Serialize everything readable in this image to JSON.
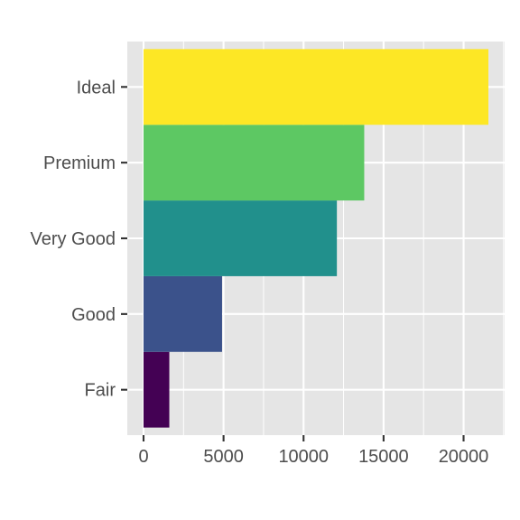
{
  "chart_data": {
    "type": "bar",
    "orientation": "horizontal",
    "categories": [
      "Fair",
      "Good",
      "Very Good",
      "Premium",
      "Ideal"
    ],
    "values": [
      1610,
      4906,
      12082,
      13791,
      21551
    ],
    "colors": [
      "#440154",
      "#3B528B",
      "#21908C",
      "#5DC863",
      "#FDE725"
    ],
    "x_ticks": [
      "0",
      "5000",
      "10000",
      "15000",
      "20000"
    ],
    "x_tick_values": [
      0,
      5000,
      10000,
      15000,
      20000
    ],
    "xlim": [
      0,
      22628
    ],
    "xlabel": "",
    "ylabel": "",
    "title": "",
    "grid": true,
    "panel_background": "#E5E5E5",
    "grid_color": "#FFFFFF"
  }
}
